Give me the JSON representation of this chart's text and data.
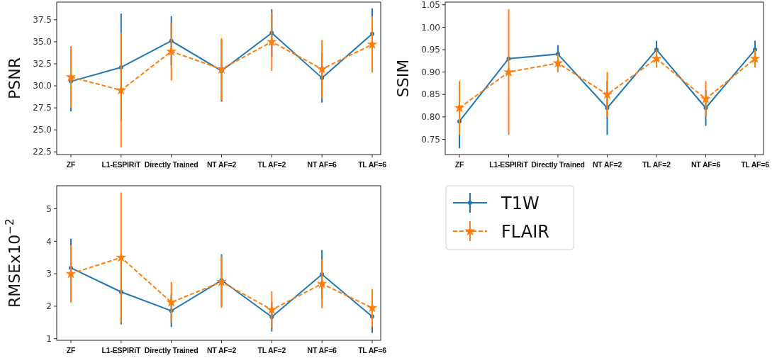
{
  "chart_data": [
    {
      "type": "line",
      "ylabel": "PSNR",
      "categories": [
        "ZF",
        "L1-ESPIRiT",
        "Directly Trained",
        "NT AF=2",
        "TL AF=2",
        "NT AF=6",
        "TL AF=6"
      ],
      "ylim": [
        22.2,
        39.5
      ],
      "yticks": [
        22.5,
        {
          "value": 25,
          "label": "25.0"
        },
        27.5,
        {
          "value": 30,
          "label": "30.0"
        },
        32.5,
        {
          "value": 35,
          "label": "35.0"
        },
        37.5
      ],
      "legend": false,
      "series": [
        {
          "color": "#1f77b4",
          "marker": "circle",
          "line_style": "solid",
          "values": [
            30.5,
            32.1,
            35.1,
            31.7,
            36.0,
            30.9,
            35.9
          ],
          "errors": [
            3.4,
            6.1,
            2.8,
            3.5,
            2.7,
            2.8,
            2.9
          ]
        },
        {
          "color": "#ff7f0e",
          "marker": "star",
          "line_style": "dashed",
          "values": [
            31.0,
            29.5,
            33.9,
            31.9,
            35.0,
            31.9,
            34.7
          ],
          "errors": [
            3.5,
            6.5,
            3.3,
            3.5,
            3.3,
            3.3,
            3.2
          ]
        }
      ]
    },
    {
      "type": "line",
      "ylabel": "SSIM",
      "categories": [
        "ZF",
        "L1-ESPIRiT",
        "Directly Trained",
        "NT AF=2",
        "TL AF=2",
        "NT AF=6",
        "TL AF=6"
      ],
      "ylim": [
        0.716,
        1.056
      ],
      "yticks": [
        0.75,
        {
          "value": 0.8,
          "label": "0.80"
        },
        0.85,
        {
          "value": 0.9,
          "label": "0.90"
        },
        0.95,
        {
          "value": 1.0,
          "label": "1.00"
        },
        1.05
      ],
      "legend": false,
      "series": [
        {
          "color": "#1f77b4",
          "marker": "circle",
          "line_style": "solid",
          "values": [
            0.79,
            0.93,
            0.94,
            0.82,
            0.95,
            0.82,
            0.95
          ],
          "errors": [
            0.06,
            null,
            0.02,
            0.06,
            0.02,
            0.04,
            0.02
          ]
        },
        {
          "color": "#ff7f0e",
          "marker": "star",
          "line_style": "dashed",
          "values": [
            0.82,
            0.9,
            0.92,
            0.85,
            0.93,
            0.84,
            0.93
          ],
          "errors": [
            0.06,
            0.14,
            0.02,
            0.05,
            0.02,
            0.04,
            0.02
          ]
        }
      ]
    },
    {
      "type": "line",
      "ylabel": "RMSEx10$^{−2}$",
      "categories": [
        "ZF",
        "L1-ESPIRiT",
        "Directly Trained",
        "NT AF=2",
        "TL AF=2",
        "NT AF=6",
        "TL AF=6"
      ],
      "ylim": [
        0.95,
        5.71
      ],
      "yticks": [
        1,
        2,
        3,
        4,
        5
      ],
      "legend": "right",
      "series": [
        {
          "name": "T1W",
          "color": "#1f77b4",
          "marker": "circle",
          "line_style": "solid",
          "values": [
            3.18,
            2.44,
            1.86,
            2.8,
            1.67,
            2.98,
            1.68
          ],
          "errors": [
            0.9,
            1.0,
            0.5,
            0.8,
            0.45,
            0.75,
            0.5
          ]
        },
        {
          "name": "FLAIR",
          "color": "#ff7f0e",
          "marker": "star",
          "line_style": "dashed",
          "values": [
            3.0,
            3.5,
            2.12,
            2.75,
            1.89,
            2.69,
            1.95
          ],
          "errors": [
            0.88,
            2.0,
            0.62,
            0.8,
            0.57,
            0.75,
            0.58
          ]
        }
      ]
    }
  ]
}
